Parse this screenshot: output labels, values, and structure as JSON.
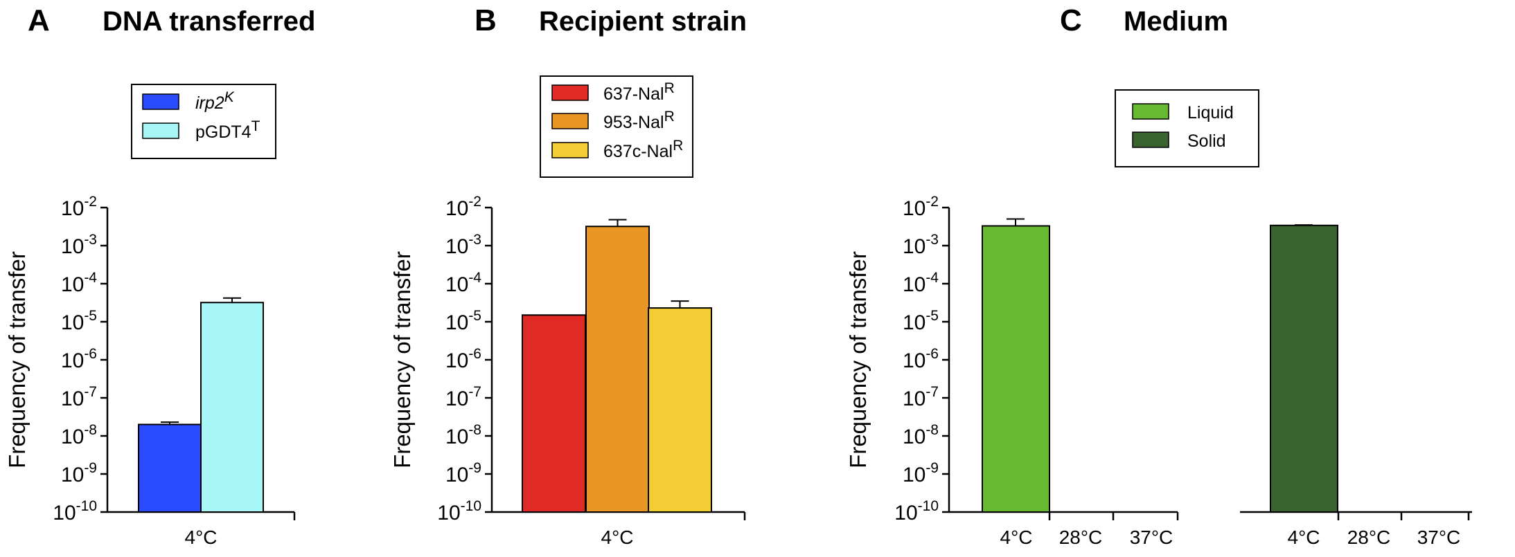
{
  "panels": [
    {
      "letter": "A",
      "title": "DNA transferred",
      "ylabel": "Frequency of transfer",
      "legend": [
        {
          "label": "irp2",
          "sup": "K",
          "italic": true,
          "color": "#2a4bff"
        },
        {
          "label": "pGDT4",
          "sup": "T",
          "italic": false,
          "color": "#a6f7f6"
        }
      ]
    },
    {
      "letter": "B",
      "title": "Recipient strain",
      "ylabel": "Frequency of transfer",
      "legend": [
        {
          "label": "637-Nal",
          "sup": "R",
          "italic": false,
          "color": "#e02a25"
        },
        {
          "label": "953-Nal",
          "sup": "R",
          "italic": false,
          "color": "#ea9625"
        },
        {
          "label": "637c-Nal",
          "sup": "R",
          "italic": false,
          "color": "#f3cd33"
        }
      ]
    },
    {
      "letter": "C",
      "title": "Medium",
      "ylabel": "Frequency of transfer",
      "legend": [
        {
          "label": "Liquid",
          "sup": "",
          "italic": false,
          "color": "#66b930"
        },
        {
          "label": "Solid",
          "sup": "",
          "italic": false,
          "color": "#3a6330"
        }
      ]
    }
  ],
  "y_ticks": [
    {
      "base": "10",
      "exp": "-2"
    },
    {
      "base": "10",
      "exp": "-3"
    },
    {
      "base": "10",
      "exp": "-4"
    },
    {
      "base": "10",
      "exp": "-5"
    },
    {
      "base": "10",
      "exp": "-6"
    },
    {
      "base": "10",
      "exp": "-7"
    },
    {
      "base": "10",
      "exp": "-8"
    },
    {
      "base": "10",
      "exp": "-9"
    },
    {
      "base": "10",
      "exp": "-10"
    }
  ],
  "chart_data": [
    {
      "type": "bar",
      "title": "DNA transferred",
      "ylabel": "Frequency of transfer",
      "yscale": "log",
      "ylim": [
        1e-10,
        0.01
      ],
      "categories": [
        "4°C"
      ],
      "series": [
        {
          "name": "irp2K",
          "color": "#2a4bff",
          "values": [
            2e-08
          ],
          "error": [
            2.3e-08
          ]
        },
        {
          "name": "pGDT4T",
          "color": "#a6f7f6",
          "values": [
            3.2e-05
          ],
          "error": [
            4.2e-05
          ]
        }
      ]
    },
    {
      "type": "bar",
      "title": "Recipient strain",
      "ylabel": "Frequency of transfer",
      "yscale": "log",
      "ylim": [
        1e-10,
        0.01
      ],
      "categories": [
        "4°C"
      ],
      "series": [
        {
          "name": "637-NalR",
          "color": "#e02a25",
          "values": [
            1.5e-05
          ],
          "error": [
            null
          ]
        },
        {
          "name": "953-NalR",
          "color": "#ea9625",
          "values": [
            0.0032
          ],
          "error": [
            0.0048
          ]
        },
        {
          "name": "637c-NalR",
          "color": "#f3cd33",
          "values": [
            2.3e-05
          ],
          "error": [
            3.5e-05
          ]
        }
      ]
    },
    {
      "type": "bar",
      "title": "Medium",
      "ylabel": "Frequency of transfer",
      "yscale": "log",
      "ylim": [
        1e-10,
        0.01
      ],
      "categories": [
        "4°C",
        "28°C",
        "37°C"
      ],
      "series": [
        {
          "name": "Liquid",
          "color": "#66b930",
          "values": [
            0.0033,
            null,
            null
          ],
          "error": [
            0.005,
            null,
            null
          ]
        },
        {
          "name": "Solid",
          "color": "#3a6330",
          "values": [
            0.0034,
            null,
            null
          ],
          "error": [
            0.0035,
            null,
            null
          ]
        }
      ]
    }
  ]
}
